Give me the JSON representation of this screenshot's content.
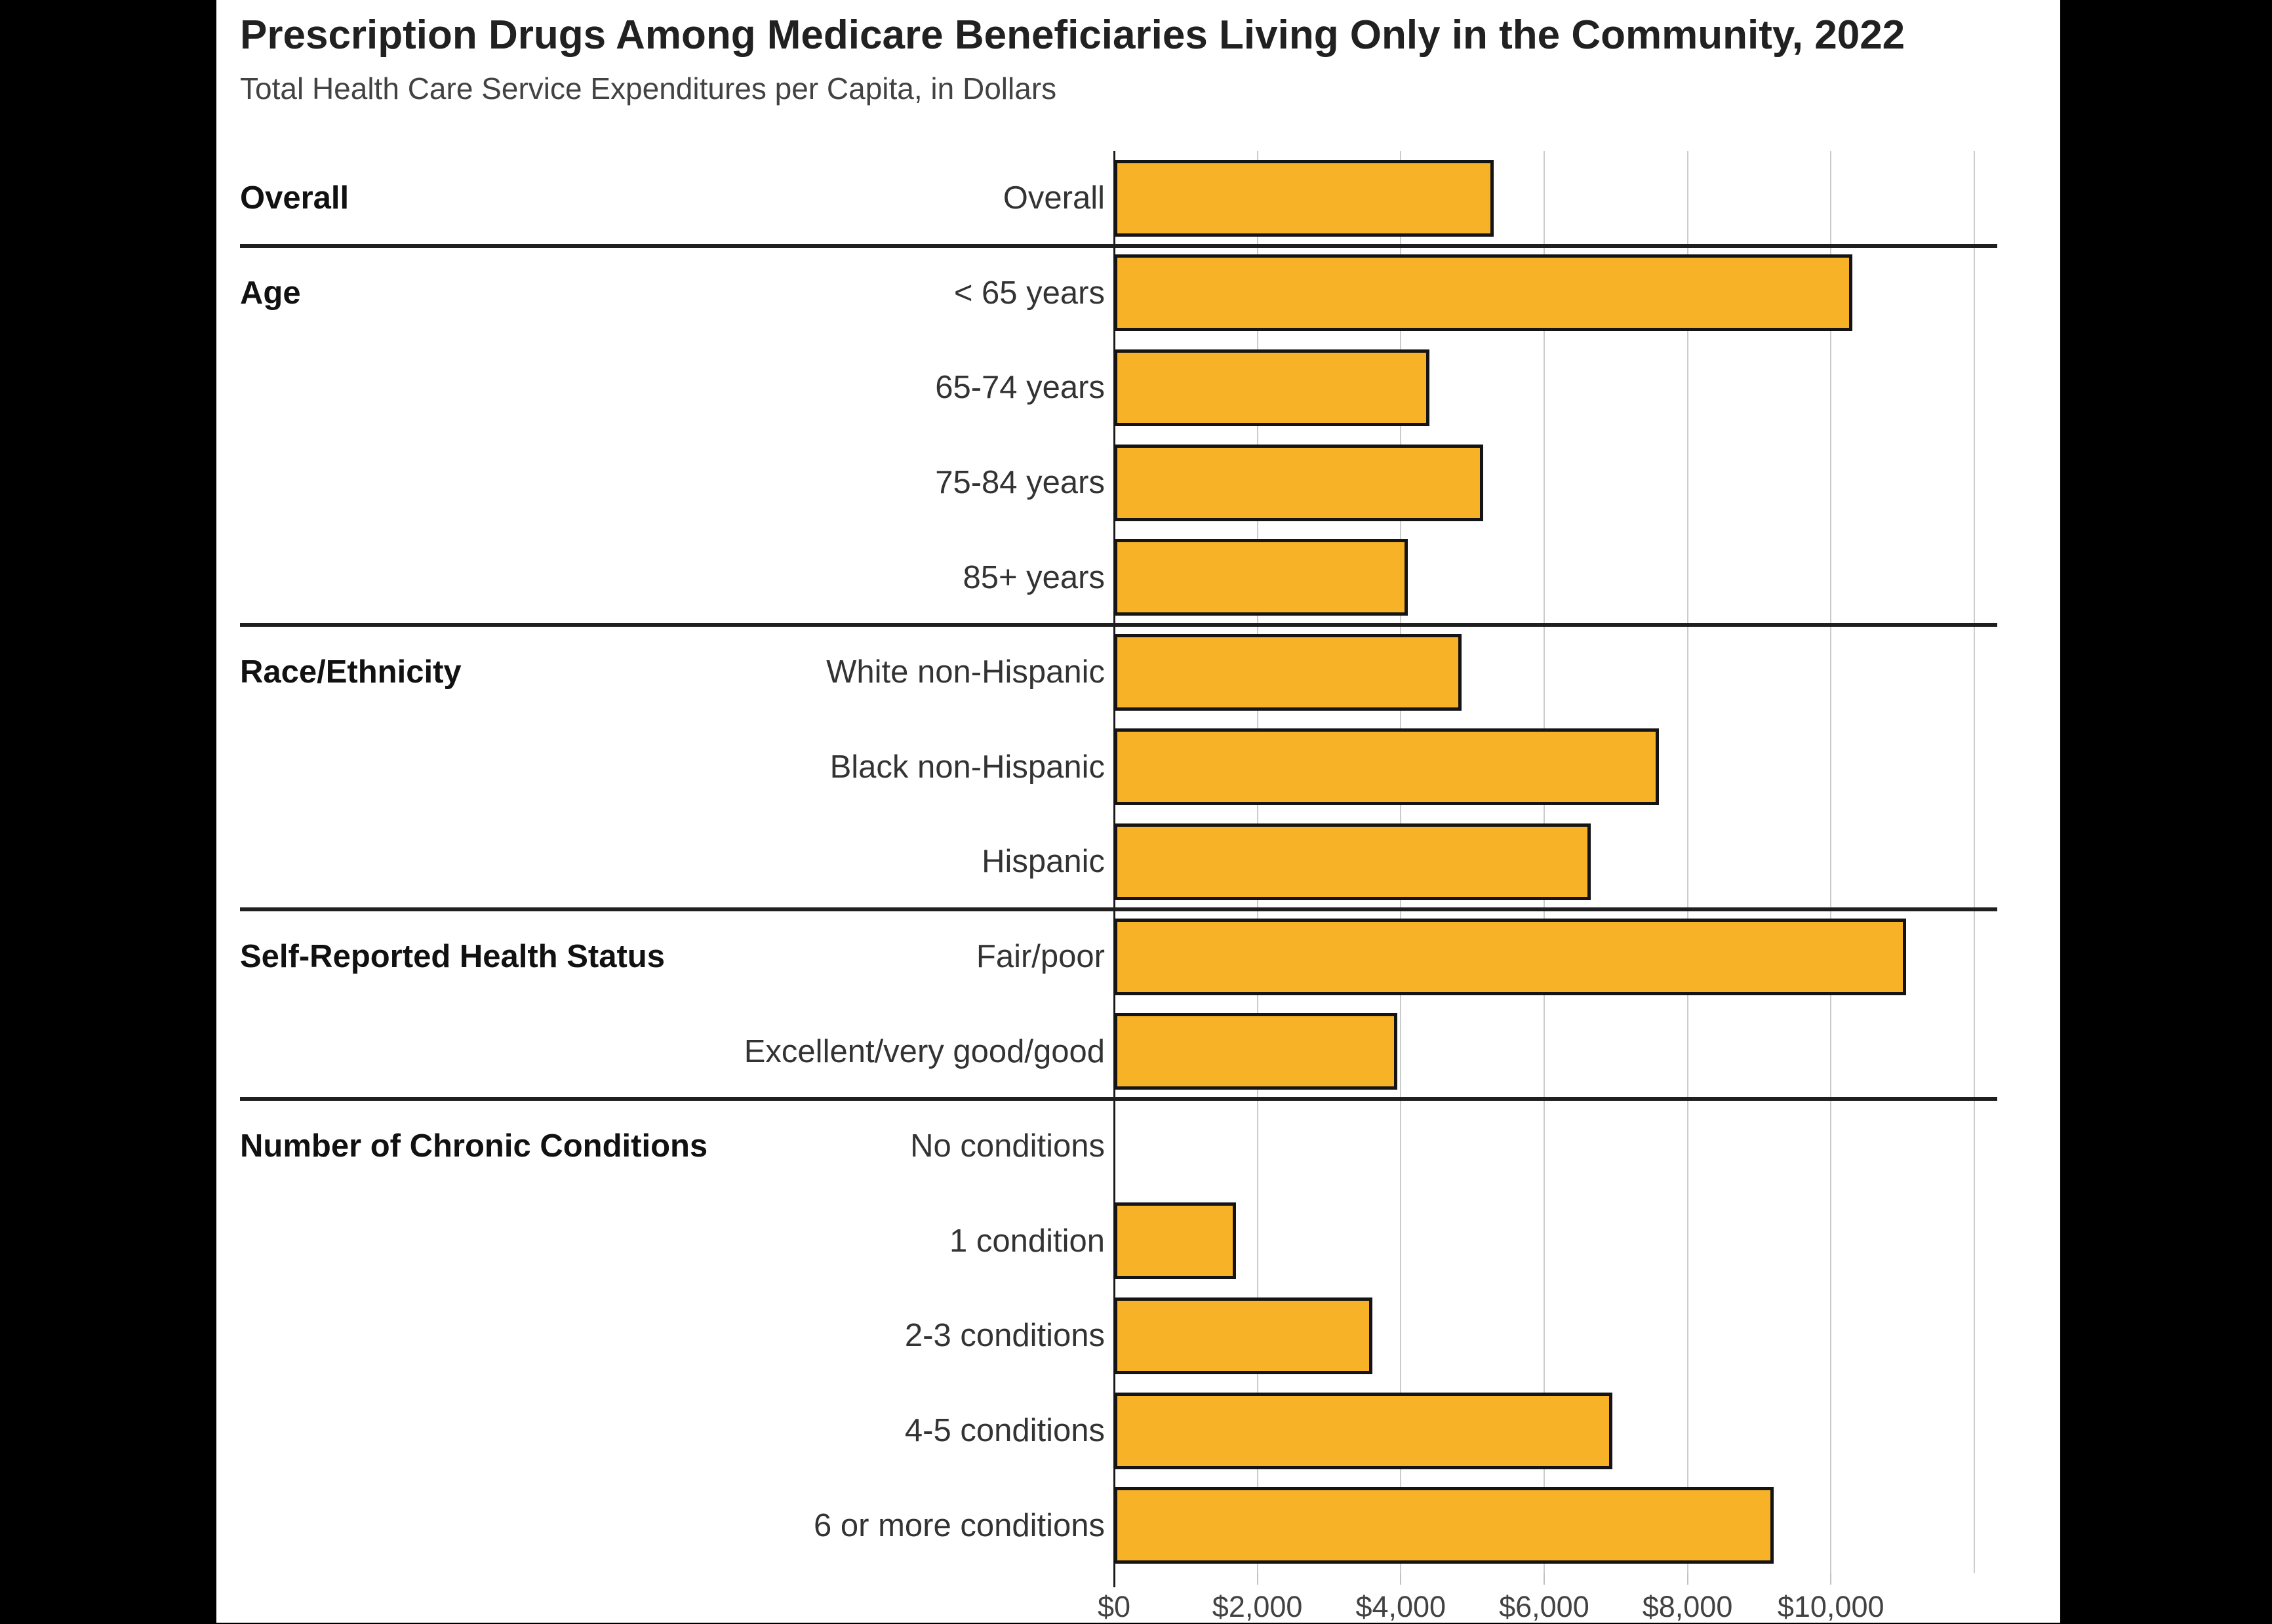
{
  "chart_data": {
    "type": "bar",
    "orientation": "horizontal",
    "title": "Prescription Drugs Among Medicare Beneficiaries Living Only in the Community, 2022",
    "subtitle": "Total Health Care Service Expenditures per Capita, in Dollars",
    "unit": "dollars per capita",
    "bar_color": "#F8B228",
    "bar_border_color": "#141414",
    "gridline_color": "#cccccc",
    "x_axis": {
      "min": 0,
      "max": 13200,
      "tick_values": [
        0,
        2000,
        4000,
        6000,
        8000,
        10000
      ],
      "tick_labels": [
        "$0",
        "$2,000",
        "$4,000",
        "$6,000",
        "$8,000",
        "$10,000"
      ],
      "gridline_values": [
        2000,
        4000,
        6000,
        8000,
        10000,
        12000
      ],
      "grid": true
    },
    "groups": [
      {
        "label": "Overall",
        "rows": [
          {
            "label": "Overall",
            "value": 5300
          }
        ]
      },
      {
        "label": "Age",
        "rows": [
          {
            "label": "< 65 years",
            "value": 10300
          },
          {
            "label": "65-74 years",
            "value": 4400
          },
          {
            "label": "75-84 years",
            "value": 5150
          },
          {
            "label": "85+ years",
            "value": 4100
          }
        ]
      },
      {
        "label": "Race/Ethnicity",
        "rows": [
          {
            "label": "White non-Hispanic",
            "value": 4850
          },
          {
            "label": "Black non-Hispanic",
            "value": 7600
          },
          {
            "label": "Hispanic",
            "value": 6650
          }
        ]
      },
      {
        "label": "Self-Reported Health Status",
        "rows": [
          {
            "label": "Fair/poor",
            "value": 11050
          },
          {
            "label": "Excellent/very good/good",
            "value": 3950
          }
        ]
      },
      {
        "label": "Number of Chronic Conditions",
        "rows": [
          {
            "label": "No conditions",
            "value": 0
          },
          {
            "label": "1 condition",
            "value": 1700
          },
          {
            "label": "2-3 conditions",
            "value": 3600
          },
          {
            "label": "4-5 conditions",
            "value": 6950
          },
          {
            "label": "6 or more conditions",
            "value": 9200
          }
        ]
      }
    ]
  }
}
